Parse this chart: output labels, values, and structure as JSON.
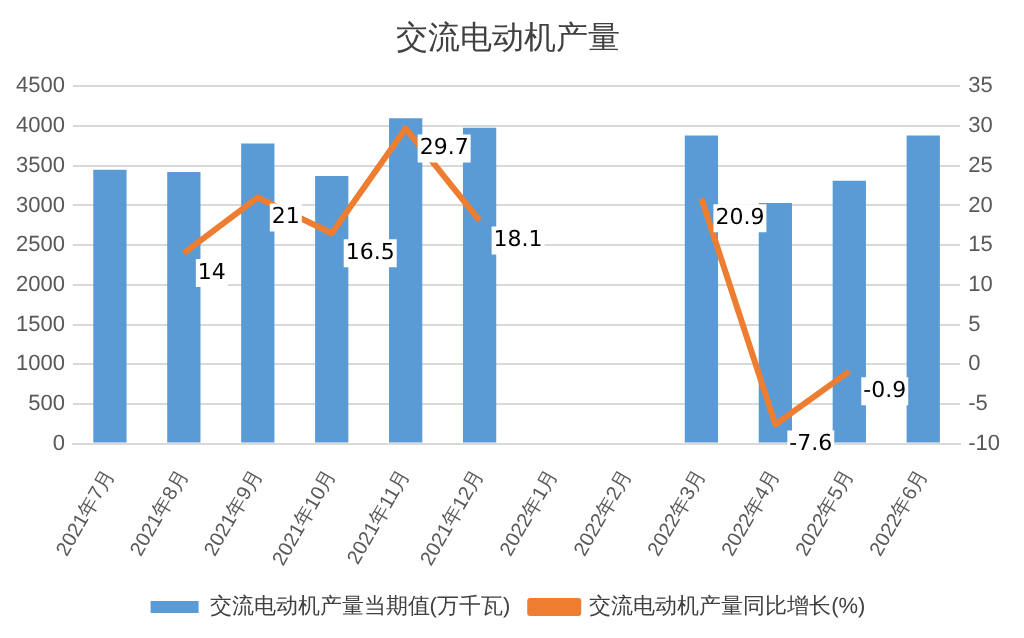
{
  "chart_data": {
    "type": "bar",
    "title": "交流电动机产量",
    "categories": [
      "2021年7月",
      "2021年8月",
      "2021年9月",
      "2021年10月",
      "2021年11月",
      "2021年12月",
      "2022年1月",
      "2022年2月",
      "2022年3月",
      "2022年4月",
      "2022年5月",
      "2022年6月"
    ],
    "series": [
      {
        "name": "交流电动机产量当期值(万千瓦)",
        "color": "#5b9bd5",
        "values": [
          3450,
          3420,
          3780,
          3370,
          4100,
          3980,
          null,
          null,
          3880,
          3030,
          3310,
          3880
        ]
      },
      {
        "name": "交流电动机产量同比增长(%)",
        "type": "line",
        "axis": "y2",
        "color": "#ed7d31",
        "values": [
          null,
          14,
          21,
          16.5,
          29.7,
          18.1,
          null,
          null,
          20.9,
          -7.6,
          -0.9,
          null
        ],
        "value_labels": [
          null,
          "14",
          "21",
          "16.5",
          "29.7",
          "18.1",
          null,
          null,
          "20.9",
          "-7.6",
          "-0.9",
          null
        ]
      }
    ],
    "ylim": [
      0,
      4500
    ],
    "yticks": [
      0,
      500,
      1000,
      1500,
      2000,
      2500,
      3000,
      3500,
      4000,
      4500
    ],
    "y2lim": [
      -10,
      35
    ],
    "y2ticks": [
      -10,
      -5,
      0,
      5,
      10,
      15,
      20,
      25,
      30,
      35
    ],
    "grid": "y",
    "legend": "bottom",
    "marker": "none",
    "line_style": "solid"
  }
}
